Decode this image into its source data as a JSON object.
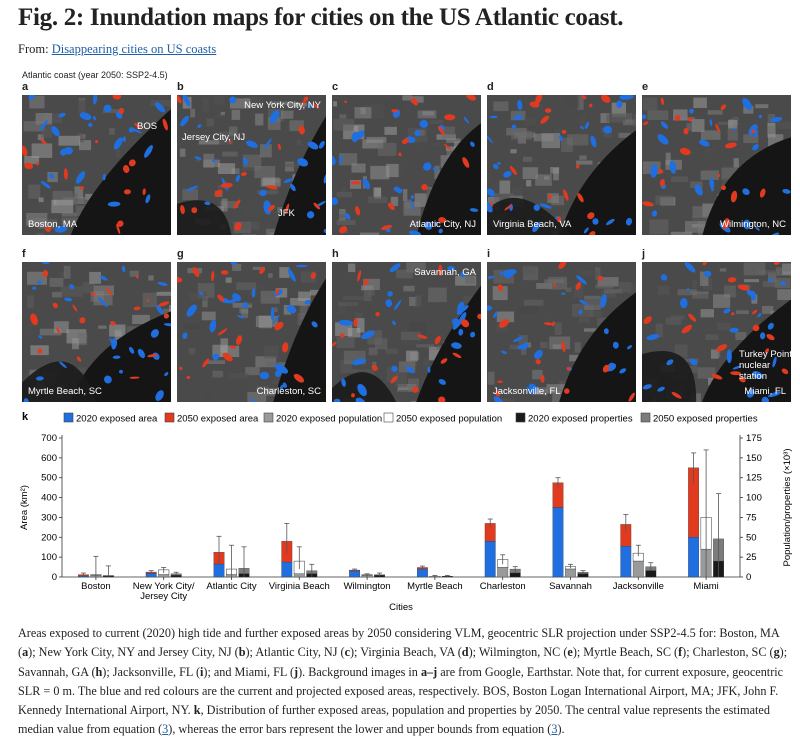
{
  "figure": {
    "title": "Fig. 2: Inundation maps for cities on the US Atlantic coast.",
    "from_prefix": "From: ",
    "from_link": "Disappearing cities on US coasts",
    "scenario": "Atlantic coast (year 2050: SSP2-4.5)"
  },
  "panels": [
    {
      "letter": "a",
      "city": "Boston, MA",
      "annotation": "BOS"
    },
    {
      "letter": "b",
      "city": "New York City, NY",
      "annotation": "Jersey City, NJ",
      "annotation2": "JFK"
    },
    {
      "letter": "c",
      "city": "Atlantic City, NJ"
    },
    {
      "letter": "d",
      "city": "Virginia Beach, VA"
    },
    {
      "letter": "e",
      "city": "Wilmington, NC"
    },
    {
      "letter": "f",
      "city": "Myrtle Beach, SC"
    },
    {
      "letter": "g",
      "city": "Charleston, SC"
    },
    {
      "letter": "h",
      "city": "Savannah, GA"
    },
    {
      "letter": "i",
      "city": "Jacksonville, FL"
    },
    {
      "letter": "j",
      "city": "Miami, FL",
      "annotation": "Turkey Point nuclear station"
    }
  ],
  "colors": {
    "exposed_2020": "#1f6fe0",
    "exposed_2050": "#e23a1f",
    "pop_2020": "#9a9a9a",
    "pop_2050": "#ffffff",
    "prop_2020": "#1a1a1a",
    "prop_2050": "#7c7c7c"
  },
  "chart_data": {
    "type": "bar",
    "panel_label": "k",
    "xlabel": "Cities",
    "ylabel": "Area (km²)",
    "y2label": "Population/properties (×10³)",
    "ylim": [
      0,
      700
    ],
    "y2lim": [
      0,
      175
    ],
    "yticks": [
      0,
      100,
      200,
      300,
      400,
      500,
      600,
      700
    ],
    "y2ticks": [
      0,
      25,
      50,
      75,
      100,
      125,
      150,
      175
    ],
    "categories": [
      "Boston",
      "New York City/ Jersey City",
      "Atlantic City",
      "Virginia Beach",
      "Wilmington",
      "Myrtle Beach",
      "Charleston",
      "Savannah",
      "Jacksonville",
      "Miami"
    ],
    "legend": [
      "2020 exposed area",
      "2050 exposed area",
      "2020 exposed population",
      "2050 exposed population",
      "2020 exposed properties",
      "2050 exposed properties"
    ],
    "series": [
      {
        "name": "2020 exposed area",
        "values": [
          5,
          18,
          65,
          75,
          30,
          40,
          180,
          350,
          155,
          200
        ]
      },
      {
        "name": "2050 exposed area",
        "values": [
          12,
          25,
          125,
          180,
          35,
          48,
          270,
          475,
          265,
          550
        ]
      },
      {
        "name": "2020 exposed population",
        "values": [
          2,
          3,
          3,
          4,
          2,
          1,
          12,
          10,
          20,
          35
        ]
      },
      {
        "name": "2050 exposed population",
        "values": [
          3,
          9,
          10,
          20,
          3,
          1,
          22,
          13,
          30,
          75
        ]
      },
      {
        "name": "2020 exposed properties",
        "values": [
          1,
          2,
          4,
          4,
          2,
          1,
          5,
          4,
          8,
          20
        ]
      },
      {
        "name": "2050 exposed properties",
        "values": [
          2,
          4,
          11,
          8,
          3,
          1,
          10,
          6,
          13,
          48
        ]
      }
    ],
    "area_error": [
      [
        3,
        20
      ],
      [
        18,
        32
      ],
      [
        70,
        205
      ],
      [
        120,
        270
      ],
      [
        30,
        40
      ],
      [
        40,
        55
      ],
      [
        250,
        292
      ],
      [
        450,
        500
      ],
      [
        230,
        315
      ],
      [
        470,
        625
      ]
    ],
    "pop_error": [
      [
        0,
        26
      ],
      [
        5,
        12
      ],
      [
        0,
        40
      ],
      [
        10,
        38
      ],
      [
        0,
        4
      ],
      [
        0,
        2
      ],
      [
        16,
        28
      ],
      [
        11,
        16
      ],
      [
        26,
        40
      ],
      [
        0,
        160
      ]
    ],
    "prop_error": [
      [
        0,
        14
      ],
      [
        2,
        6
      ],
      [
        0,
        38
      ],
      [
        0,
        16
      ],
      [
        1,
        5
      ],
      [
        0,
        2
      ],
      [
        6,
        13
      ],
      [
        3,
        8
      ],
      [
        8,
        18
      ],
      [
        0,
        105
      ]
    ]
  },
  "caption": {
    "text1": "Areas exposed to current (2020) high tide and further exposed areas by 2050 considering VLM, geocentric SLR projection under SSP2-4.5 for: Boston, MA (",
    "a": "a",
    "t_a": "); New York City, NY and Jersey City, NJ (",
    "b": "b",
    "t_b": "); Atlantic City, NJ (",
    "c": "c",
    "t_c": "); Virginia Beach, VA (",
    "d": "d",
    "t_d": "); Wilmington, NC (",
    "e": "e",
    "t_e": "); Myrtle Beach, SC (",
    "f": "f",
    "t_f": "); Charleston, SC (",
    "g": "g",
    "t_g": "); Savannah, GA (",
    "h": "h",
    "t_h": "); Jacksonville, FL (",
    "i": "i",
    "t_i": "); and Miami, FL (",
    "j": "j",
    "t_j": "). Background images in ",
    "aj": "a–j",
    "t_aj": " are from Google, Earthstar. Note that, for current exposure, geocentric SLR = 0 m. The blue and red colours are the current and projected exposed areas, respectively. BOS, Boston Logan International Airport, MA; JFK, John F. Kennedy International Airport, NY. ",
    "k": "k",
    "t_k": ", Distribution of further exposed areas, population and properties by 2050. The central value represents the estimated median value from equation (",
    "eq1": "3",
    "t_eq1": "), whereas the error bars represent the lower and upper bounds from equation (",
    "eq2": "3",
    "t_eq2": ")."
  }
}
